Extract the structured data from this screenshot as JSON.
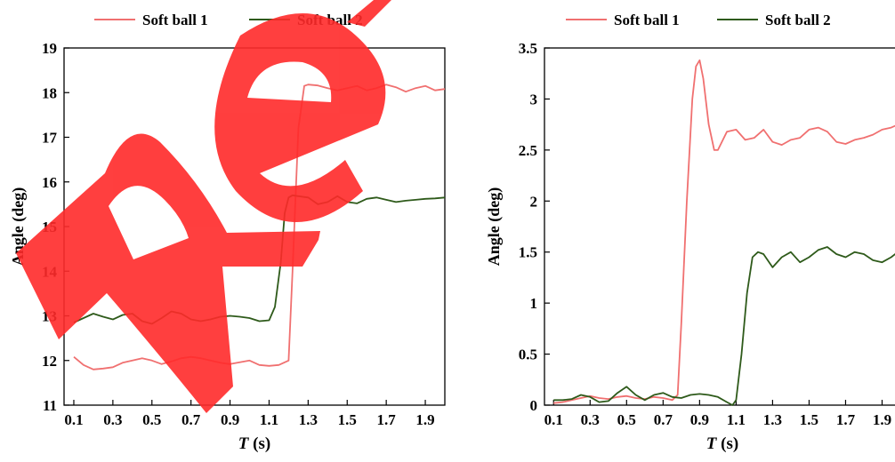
{
  "chart_data": [
    {
      "type": "line",
      "xlabel": "T (s)",
      "xlabel_var": "T",
      "xlabel_unit": " (s)",
      "ylabel": "Angle (deg)",
      "xlim": [
        0.05,
        2.0
      ],
      "ylim": [
        11,
        19
      ],
      "x_ticks": [
        0.1,
        0.3,
        0.5,
        0.7,
        0.9,
        1.1,
        1.3,
        1.5,
        1.7,
        1.9
      ],
      "x_tick_labels": [
        "0.1",
        "0.3",
        "0.5",
        "0.7",
        "0.9",
        "1.1",
        "1.3",
        "1.5",
        "1.7",
        "1.9"
      ],
      "y_ticks": [
        11,
        12,
        13,
        14,
        15,
        16,
        17,
        18,
        19
      ],
      "y_tick_labels": [
        "11",
        "12",
        "13",
        "14",
        "15",
        "16",
        "17",
        "18",
        "19"
      ],
      "grid": false,
      "legend": "top",
      "series": [
        {
          "name": "Soft ball 1",
          "color": "#f07070",
          "x": [
            0.1,
            0.15,
            0.2,
            0.25,
            0.3,
            0.35,
            0.4,
            0.45,
            0.5,
            0.55,
            0.6,
            0.65,
            0.7,
            0.75,
            0.8,
            0.85,
            0.9,
            0.95,
            1.0,
            1.05,
            1.1,
            1.15,
            1.2,
            1.22,
            1.25,
            1.28,
            1.3,
            1.35,
            1.4,
            1.45,
            1.5,
            1.55,
            1.6,
            1.65,
            1.7,
            1.75,
            1.8,
            1.85,
            1.9,
            1.95,
            2.0
          ],
          "y": [
            12.08,
            11.9,
            11.8,
            11.82,
            11.85,
            11.95,
            12.0,
            12.05,
            12.0,
            11.92,
            11.98,
            12.05,
            12.08,
            12.05,
            12.0,
            11.95,
            11.92,
            11.96,
            12.0,
            11.9,
            11.88,
            11.9,
            12.0,
            14.0,
            17.2,
            18.15,
            18.18,
            18.16,
            18.1,
            18.05,
            18.1,
            18.15,
            18.05,
            18.1,
            18.18,
            18.12,
            18.02,
            18.1,
            18.15,
            18.05,
            18.08
          ]
        },
        {
          "name": "Soft ball 2",
          "color": "#2e5a1a",
          "x": [
            0.1,
            0.15,
            0.2,
            0.25,
            0.3,
            0.35,
            0.4,
            0.45,
            0.5,
            0.55,
            0.6,
            0.65,
            0.7,
            0.75,
            0.8,
            0.85,
            0.9,
            0.95,
            1.0,
            1.05,
            1.1,
            1.13,
            1.16,
            1.18,
            1.2,
            1.22,
            1.25,
            1.3,
            1.35,
            1.4,
            1.45,
            1.5,
            1.55,
            1.6,
            1.65,
            1.7,
            1.75,
            1.8,
            1.85,
            1.9,
            1.95,
            2.0
          ],
          "y": [
            12.85,
            12.95,
            13.05,
            12.98,
            12.92,
            13.02,
            13.05,
            12.88,
            12.82,
            12.95,
            13.1,
            13.05,
            12.92,
            12.88,
            12.92,
            12.98,
            13.0,
            12.98,
            12.95,
            12.88,
            12.9,
            13.2,
            14.2,
            15.3,
            15.65,
            15.7,
            15.68,
            15.65,
            15.5,
            15.55,
            15.68,
            15.55,
            15.52,
            15.62,
            15.65,
            15.6,
            15.55,
            15.58,
            15.6,
            15.62,
            15.63,
            15.65
          ]
        }
      ]
    },
    {
      "type": "line",
      "xlabel": "T (s)",
      "xlabel_var": "T",
      "xlabel_unit": " (s)",
      "ylabel": "Angle (deg)",
      "xlim": [
        0.05,
        2.0
      ],
      "ylim": [
        0,
        3.5
      ],
      "x_ticks": [
        0.1,
        0.3,
        0.5,
        0.7,
        0.9,
        1.1,
        1.3,
        1.5,
        1.7,
        1.9
      ],
      "x_tick_labels": [
        "0.1",
        "0.3",
        "0.5",
        "0.7",
        "0.9",
        "1.1",
        "1.3",
        "1.5",
        "1.7",
        "1.9"
      ],
      "y_ticks": [
        0,
        0.5,
        1,
        1.5,
        2,
        2.5,
        3,
        3.5
      ],
      "y_tick_labels": [
        "0",
        "0.5",
        "1",
        "1.5",
        "2",
        "2.5",
        "3",
        "3.5"
      ],
      "grid": false,
      "legend": "top",
      "series": [
        {
          "name": "Soft ball 1",
          "color": "#f07070",
          "x": [
            0.1,
            0.15,
            0.2,
            0.25,
            0.3,
            0.35,
            0.4,
            0.45,
            0.5,
            0.55,
            0.6,
            0.65,
            0.7,
            0.75,
            0.78,
            0.8,
            0.83,
            0.86,
            0.88,
            0.9,
            0.92,
            0.95,
            0.98,
            1.0,
            1.05,
            1.1,
            1.15,
            1.2,
            1.25,
            1.3,
            1.35,
            1.4,
            1.45,
            1.5,
            1.55,
            1.6,
            1.65,
            1.7,
            1.75,
            1.8,
            1.85,
            1.9,
            1.95,
            2.0
          ],
          "y": [
            0.02,
            0.03,
            0.05,
            0.07,
            0.09,
            0.07,
            0.06,
            0.08,
            0.09,
            0.07,
            0.06,
            0.08,
            0.07,
            0.05,
            0.1,
            0.8,
            2.0,
            3.0,
            3.32,
            3.38,
            3.2,
            2.75,
            2.5,
            2.5,
            2.68,
            2.7,
            2.6,
            2.62,
            2.7,
            2.58,
            2.55,
            2.6,
            2.62,
            2.7,
            2.72,
            2.68,
            2.58,
            2.56,
            2.6,
            2.62,
            2.65,
            2.7,
            2.72,
            2.76
          ]
        },
        {
          "name": "Soft ball 2",
          "color": "#2e5a1a",
          "x": [
            0.1,
            0.15,
            0.2,
            0.25,
            0.3,
            0.35,
            0.4,
            0.45,
            0.5,
            0.55,
            0.6,
            0.65,
            0.7,
            0.75,
            0.8,
            0.85,
            0.9,
            0.95,
            1.0,
            1.05,
            1.08,
            1.1,
            1.13,
            1.16,
            1.19,
            1.22,
            1.25,
            1.3,
            1.35,
            1.4,
            1.45,
            1.5,
            1.55,
            1.6,
            1.65,
            1.7,
            1.75,
            1.8,
            1.85,
            1.9,
            1.95,
            2.0
          ],
          "y": [
            0.05,
            0.05,
            0.06,
            0.1,
            0.08,
            0.03,
            0.04,
            0.12,
            0.18,
            0.1,
            0.05,
            0.1,
            0.12,
            0.08,
            0.07,
            0.1,
            0.11,
            0.1,
            0.08,
            0.03,
            0.0,
            0.05,
            0.5,
            1.1,
            1.45,
            1.5,
            1.48,
            1.35,
            1.45,
            1.5,
            1.4,
            1.45,
            1.52,
            1.55,
            1.48,
            1.45,
            1.5,
            1.48,
            1.42,
            1.4,
            1.45,
            1.52
          ]
        }
      ]
    }
  ]
}
